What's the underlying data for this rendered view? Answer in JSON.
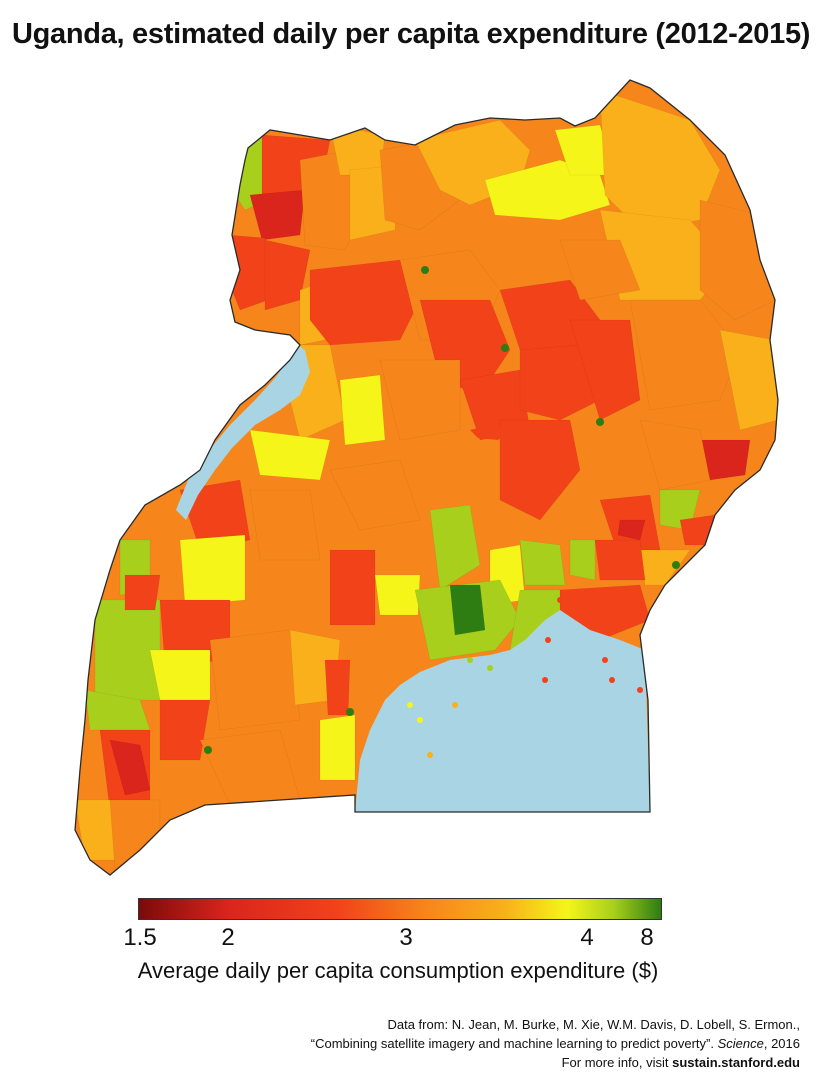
{
  "title": "Uganda, estimated daily per capita expenditure (2012-2015)",
  "colors": {
    "water": "#a9d4e3",
    "border": "#2a2a2a",
    "scale": [
      "#7a0b0b",
      "#d9251c",
      "#f2421a",
      "#f6861c",
      "#f9b01a",
      "#f5f51a",
      "#a7cf1c",
      "#2e7d12"
    ]
  },
  "legend": {
    "ticks": [
      "1.5",
      "2",
      "3",
      "4",
      "8"
    ],
    "caption": "Average daily per capita consumption expenditure ($)"
  },
  "credit": {
    "line1": "Data from: N. Jean, M. Burke, M. Xie, W.M. Davis, D. Lobell, S. Ermon.,",
    "line2_quote": "“Combining satellite imagery and machine learning to predict poverty”.",
    "line2_journal": "Science",
    "line2_year": ", 2016",
    "line3_prefix": "For more info, visit",
    "line3_link": "sustain.stanford.edu"
  }
}
